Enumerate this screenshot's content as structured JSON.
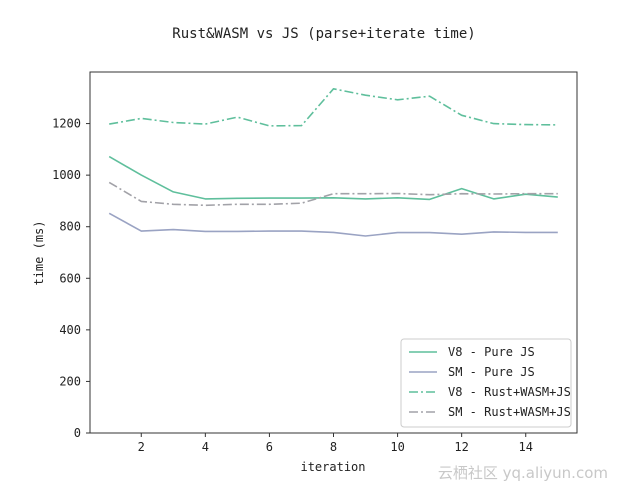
{
  "chart_data": {
    "type": "line",
    "title": "Rust&WASM vs JS (parse+iterate time)",
    "xlabel": "iteration",
    "ylabel": "time (ms)",
    "xlim": [
      0.4,
      15.6
    ],
    "ylim": [
      0,
      1400
    ],
    "xticks": [
      2,
      4,
      6,
      8,
      10,
      12,
      14
    ],
    "yticks": [
      0,
      200,
      400,
      600,
      800,
      1000,
      1200
    ],
    "grid": false,
    "legend_position": "lower-right",
    "x": [
      1,
      2,
      3,
      4,
      5,
      6,
      7,
      8,
      9,
      10,
      11,
      12,
      13,
      14,
      15
    ],
    "series": [
      {
        "name": "V8 - Pure JS",
        "color": "#5fbf9c",
        "dash": "solid",
        "values": [
          1072,
          1000,
          935,
          908,
          910,
          911,
          911,
          912,
          908,
          912,
          906,
          948,
          908,
          926,
          915
        ]
      },
      {
        "name": "SM - Pure JS",
        "color": "#9aa3c3",
        "dash": "solid",
        "values": [
          852,
          783,
          789,
          782,
          782,
          783,
          783,
          778,
          764,
          777,
          777,
          771,
          780,
          778,
          778
        ]
      },
      {
        "name": "V8 - Rust+WASM+JS",
        "color": "#5fbf9c",
        "dash": "dashdot",
        "values": [
          1198,
          1220,
          1204,
          1198,
          1225,
          1191,
          1192,
          1335,
          1310,
          1292,
          1306,
          1232,
          1200,
          1196,
          1195
        ]
      },
      {
        "name": "SM - Rust+WASM+JS",
        "color": "#a2a2a8",
        "dash": "dashdot",
        "values": [
          972,
          898,
          887,
          883,
          887,
          887,
          891,
          928,
          928,
          929,
          924,
          928,
          927,
          928,
          928
        ]
      }
    ]
  },
  "watermark": "云栖社区 yq.aliyun.com"
}
